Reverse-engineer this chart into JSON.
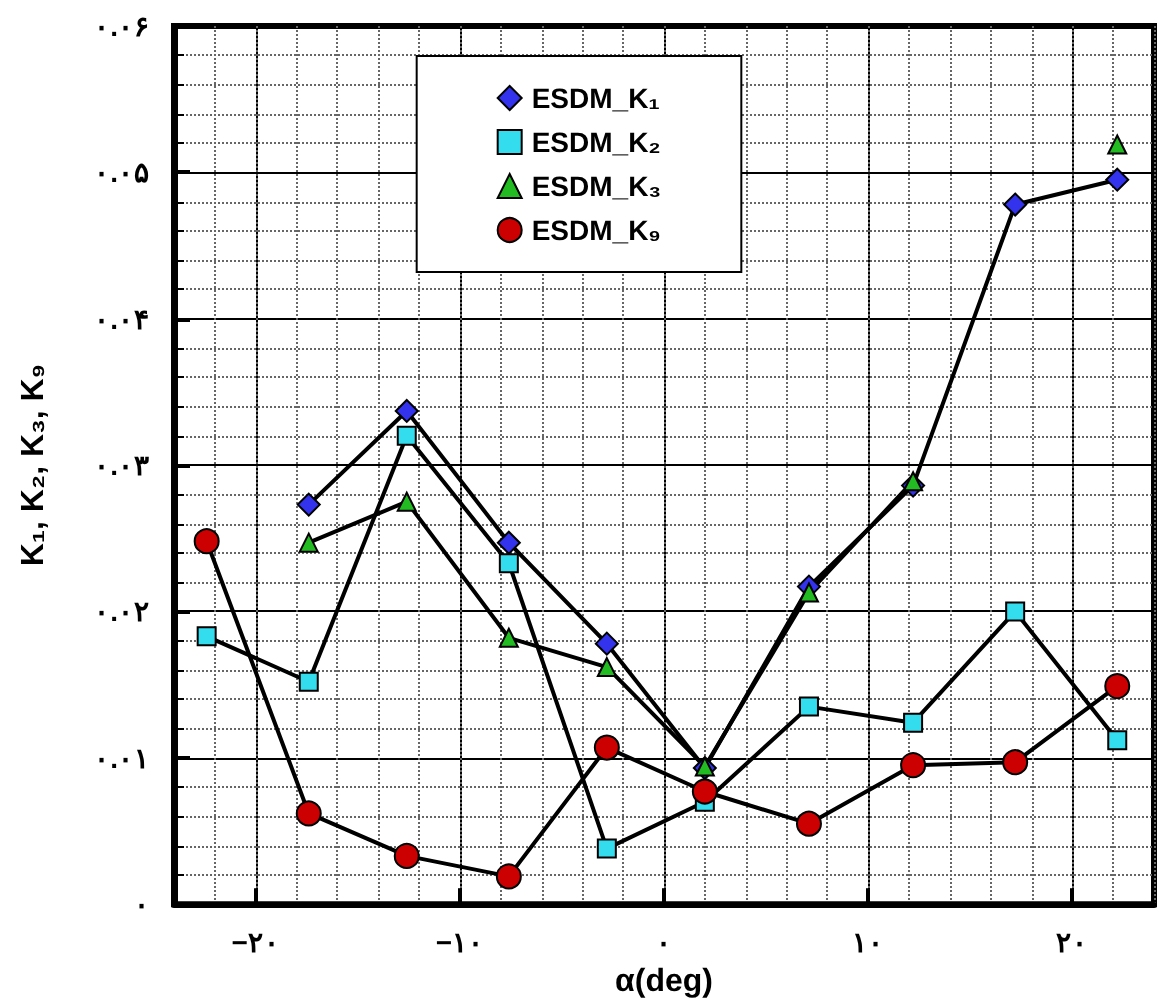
{
  "chart_data": {
    "type": "line",
    "xlabel": "α(deg)",
    "ylabel": "K₁, K₂, K₃, K₉",
    "x": [
      -22.4,
      -17.4,
      -12.6,
      -7.6,
      -2.8,
      2.0,
      7.1,
      12.2,
      17.2,
      22.2
    ],
    "series": [
      {
        "name": "ESDM_K₁",
        "color": "#3333ee",
        "marker": "diamond",
        "values": [
          null,
          0.0273,
          0.0337,
          0.0247,
          0.0178,
          0.0093,
          0.0217,
          0.0286,
          0.0478,
          0.0495
        ]
      },
      {
        "name": "ESDM_K₂",
        "color": "#33ddee",
        "marker": "square",
        "values": [
          0.0183,
          0.0152,
          0.032,
          0.0233,
          0.0038,
          0.007,
          0.0135,
          0.0124,
          0.02,
          0.0112
        ]
      },
      {
        "name": "ESDM_K₃",
        "color": "#22bb22",
        "marker": "triangle",
        "values": [
          null,
          0.0247,
          0.0275,
          0.0182,
          0.0162,
          0.0094,
          0.0213,
          0.0289,
          null,
          0.0519
        ]
      },
      {
        "name": "ESDM_K₉",
        "color": "#cc0000",
        "marker": "circle",
        "values": [
          0.0248,
          0.0062,
          0.0033,
          0.0019,
          0.0107,
          0.0077,
          0.0055,
          0.0095,
          0.0097,
          0.0149
        ]
      }
    ],
    "xlim": [
      -24,
      24
    ],
    "xticks": [
      {
        "value": -20,
        "label": "−۲۰"
      },
      {
        "value": -10,
        "label": "−۱۰"
      },
      {
        "value": 0,
        "label": "۰"
      },
      {
        "value": 10,
        "label": "۱۰"
      },
      {
        "value": 20,
        "label": "۲۰"
      }
    ],
    "ylim": [
      0,
      0.06
    ],
    "yticks": [
      {
        "value": 0,
        "label": "۰"
      },
      {
        "value": 0.01,
        "label": "۰.۰۱"
      },
      {
        "value": 0.02,
        "label": "۰.۰۲"
      },
      {
        "value": 0.03,
        "label": "۰.۰۳"
      },
      {
        "value": 0.04,
        "label": "۰.۰۴"
      },
      {
        "value": 0.05,
        "label": "۰.۰۵"
      },
      {
        "value": 0.06,
        "label": "۰.۰۶"
      }
    ],
    "grid": true,
    "legend": "top",
    "line_style": "solid"
  }
}
